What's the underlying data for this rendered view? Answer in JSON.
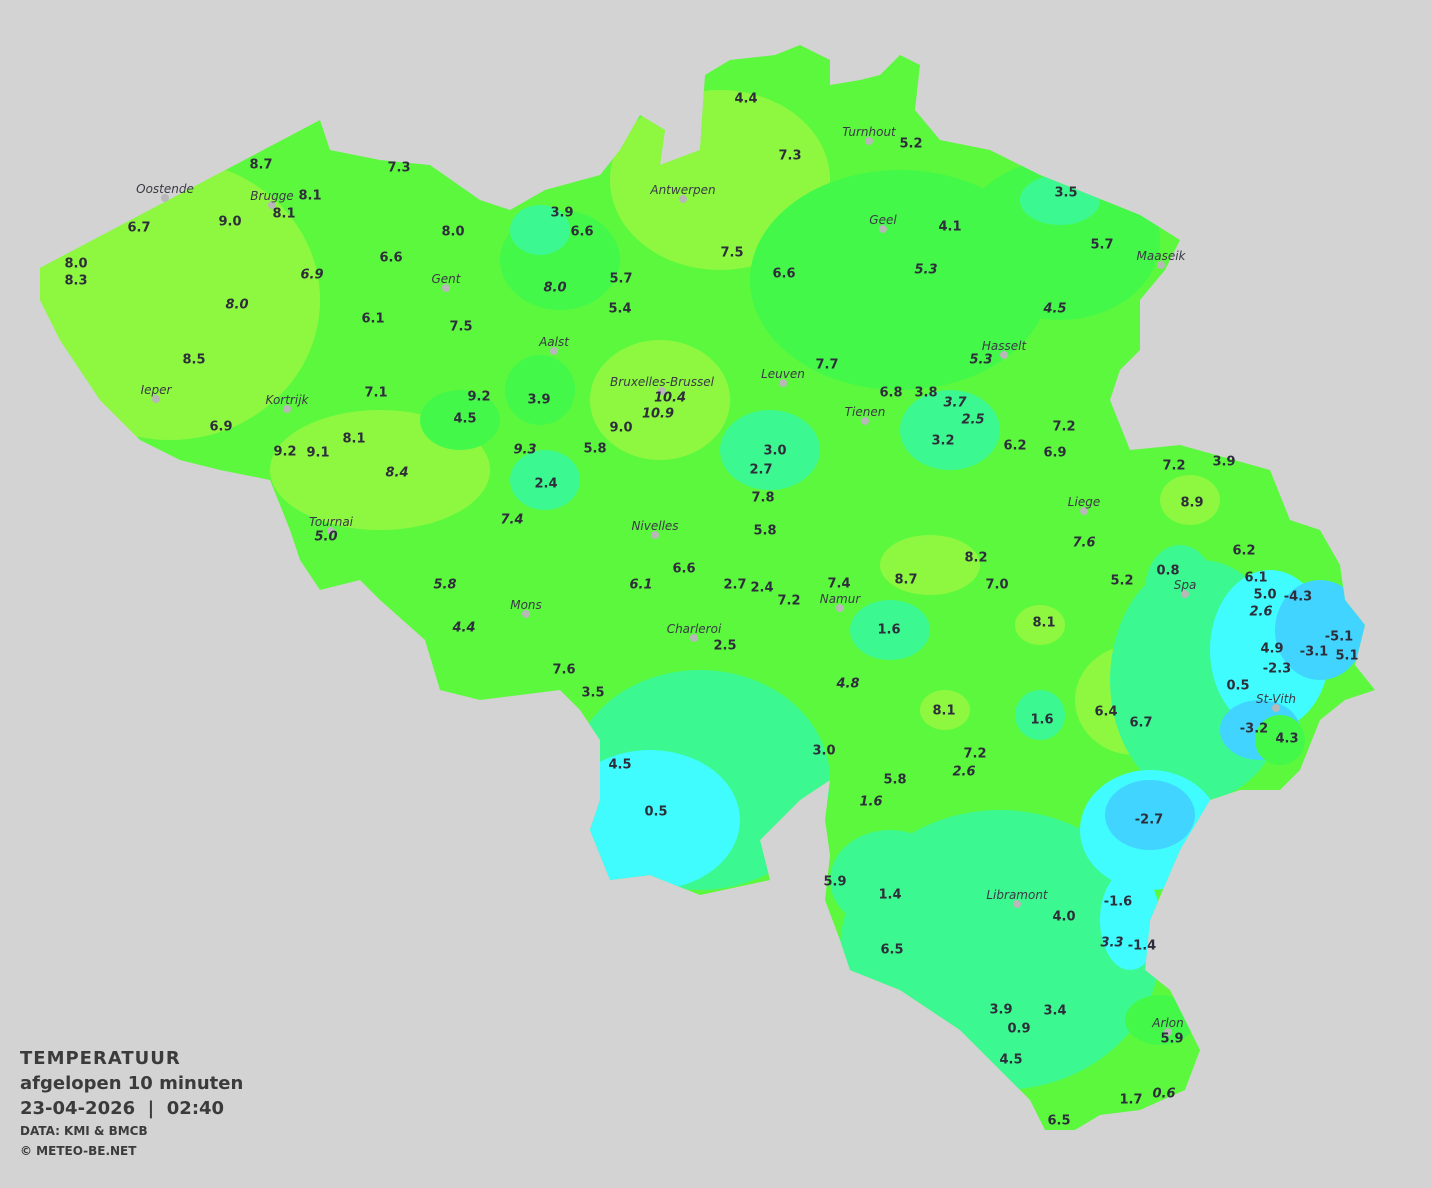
{
  "legend": {
    "title": "TEMPERATUUR",
    "subtitle": "afgelopen 10 minuten",
    "datetime": "23-04-2026  |  02:40",
    "source": "DATA: KMI & BMCB",
    "copyright": "© METEO-BE.NET"
  },
  "colors": {
    "background": "#d3d3d3",
    "base_green": "#5cf83e",
    "lime": "#8ef840",
    "green": "#44f84a",
    "teal": "#3cf890",
    "cyan": "#40fcff",
    "blue": "#40d4ff"
  },
  "cities": [
    "Oostende",
    "Brugge",
    "Gent",
    "Antwerpen",
    "Turnhout",
    "Geel",
    "Maaseik",
    "Aalst",
    "Ieper",
    "Kortrijk",
    "Bruxelles-Brussel",
    "Leuven",
    "Tienen",
    "Hasselt",
    "Liege",
    "Tournai",
    "Nivelles",
    "Spa",
    "Mons",
    "Namur",
    "Charleroi",
    "St-Vith",
    "Libramont",
    "Arlon"
  ],
  "readings": [
    {
      "v": "8.7"
    },
    {
      "v": "7.3"
    },
    {
      "v": "4.4"
    },
    {
      "v": "7.3"
    },
    {
      "v": "5.2"
    },
    {
      "v": "8.1"
    },
    {
      "v": "8.1"
    },
    {
      "v": "6.7"
    },
    {
      "v": "9.0"
    },
    {
      "v": "3.9"
    },
    {
      "v": "6.6"
    },
    {
      "v": "8.0"
    },
    {
      "v": "3.5"
    },
    {
      "v": "4.1"
    },
    {
      "v": "7.5"
    },
    {
      "v": "5.7"
    },
    {
      "v": "8.0"
    },
    {
      "v": "8.3"
    },
    {
      "v": "6.9",
      "i": true
    },
    {
      "v": "6.6"
    },
    {
      "v": "6.6"
    },
    {
      "v": "5.3",
      "i": true
    },
    {
      "v": "8.0",
      "i": true
    },
    {
      "v": "5.7"
    },
    {
      "v": "5.4"
    },
    {
      "v": "4.5",
      "i": true
    },
    {
      "v": "8.0",
      "i": true
    },
    {
      "v": "6.1"
    },
    {
      "v": "7.5"
    },
    {
      "v": "5.3",
      "i": true
    },
    {
      "v": "7.7"
    },
    {
      "v": "8.5"
    },
    {
      "v": "7.1"
    },
    {
      "v": "9.2"
    },
    {
      "v": "3.9"
    },
    {
      "v": "10.4",
      "i": true
    },
    {
      "v": "10.9",
      "i": true
    },
    {
      "v": "6.8"
    },
    {
      "v": "3.8"
    },
    {
      "v": "3.7",
      "i": true
    },
    {
      "v": "2.5",
      "i": true
    },
    {
      "v": "4.5"
    },
    {
      "v": "9.0"
    },
    {
      "v": "6.9"
    },
    {
      "v": "7.2"
    },
    {
      "v": "3.2"
    },
    {
      "v": "6.2"
    },
    {
      "v": "6.9"
    },
    {
      "v": "3.0"
    },
    {
      "v": "8.1"
    },
    {
      "v": "9.2"
    },
    {
      "v": "9.1"
    },
    {
      "v": "9.3",
      "i": true
    },
    {
      "v": "5.8"
    },
    {
      "v": "2.7"
    },
    {
      "v": "7.2"
    },
    {
      "v": "3.9"
    },
    {
      "v": "8.4",
      "i": true
    },
    {
      "v": "2.4"
    },
    {
      "v": "7.8"
    },
    {
      "v": "8.9"
    },
    {
      "v": "7.4",
      "i": true
    },
    {
      "v": "5.8"
    },
    {
      "v": "5.0",
      "i": true
    },
    {
      "v": "7.6",
      "i": true
    },
    {
      "v": "6.2"
    },
    {
      "v": "8.2"
    },
    {
      "v": "6.6"
    },
    {
      "v": "5.2"
    },
    {
      "v": "0.8"
    },
    {
      "v": "5.8",
      "i": true
    },
    {
      "v": "6.1",
      "i": true
    },
    {
      "v": "2.7"
    },
    {
      "v": "2.4"
    },
    {
      "v": "8.7"
    },
    {
      "v": "7.0"
    },
    {
      "v": "6.1"
    },
    {
      "v": "5.0"
    },
    {
      "v": "-4.3"
    },
    {
      "v": "7.4"
    },
    {
      "v": "7.2"
    },
    {
      "v": "2.6",
      "i": true
    },
    {
      "v": "4.4",
      "i": true
    },
    {
      "v": "1.6"
    },
    {
      "v": "8.1"
    },
    {
      "v": "2.5"
    },
    {
      "v": "4.9"
    },
    {
      "v": "-3.1"
    },
    {
      "v": "-5.1"
    },
    {
      "v": "5.1"
    },
    {
      "v": "-2.3"
    },
    {
      "v": "7.6"
    },
    {
      "v": "3.5"
    },
    {
      "v": "4.8",
      "i": true
    },
    {
      "v": "0.5"
    },
    {
      "v": "8.1"
    },
    {
      "v": "6.4"
    },
    {
      "v": "6.7"
    },
    {
      "v": "1.6"
    },
    {
      "v": "-3.2"
    },
    {
      "v": "4.3"
    },
    {
      "v": "3.0"
    },
    {
      "v": "7.2"
    },
    {
      "v": "2.6",
      "i": true
    },
    {
      "v": "4.5"
    },
    {
      "v": "5.8"
    },
    {
      "v": "1.6",
      "i": true
    },
    {
      "v": "0.5"
    },
    {
      "v": "-2.7"
    },
    {
      "v": "5.9"
    },
    {
      "v": "1.4"
    },
    {
      "v": "-1.6"
    },
    {
      "v": "4.0"
    },
    {
      "v": "3.3",
      "i": true
    },
    {
      "v": "-1.4"
    },
    {
      "v": "6.5"
    },
    {
      "v": "3.9"
    },
    {
      "v": "3.4"
    },
    {
      "v": "0.9"
    },
    {
      "v": "5.9"
    },
    {
      "v": "4.5"
    },
    {
      "v": "1.7"
    },
    {
      "v": "0.6",
      "i": true
    },
    {
      "v": "6.5"
    }
  ]
}
